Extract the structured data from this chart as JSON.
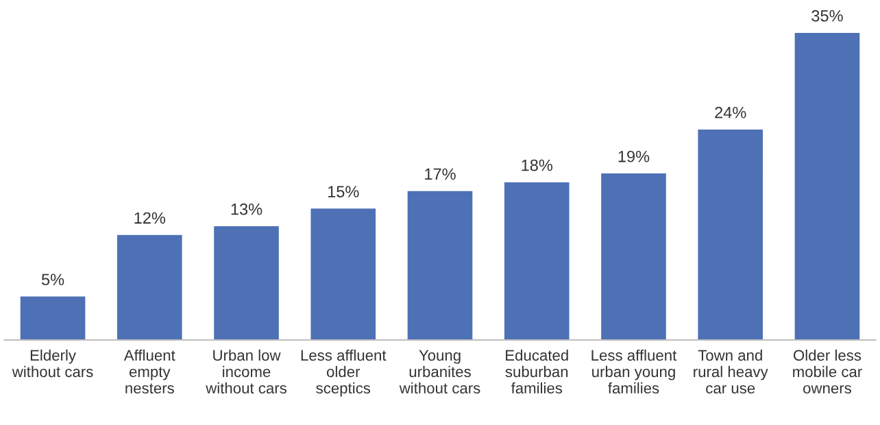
{
  "chart_data": {
    "type": "bar",
    "categories": [
      "Elderly\nwithout cars",
      "Affluent\nempty\nnesters",
      "Urban low\nincome\nwithout cars",
      "Less affluent\nolder\nsceptics",
      "Young\nurbanites\nwithout cars",
      "Educated\nsuburban\nfamilies",
      "Less affluent\nurban young\nfamilies",
      "Town and\nrural heavy\ncar use",
      "Older less\nmobile car\nowners"
    ],
    "values": [
      5,
      12,
      13,
      15,
      17,
      18,
      19,
      24,
      35
    ],
    "value_labels": [
      "5%",
      "12%",
      "13%",
      "15%",
      "17%",
      "18%",
      "19%",
      "24%",
      "35%"
    ],
    "color": "#4e71b6",
    "grid": false,
    "legend": false
  }
}
